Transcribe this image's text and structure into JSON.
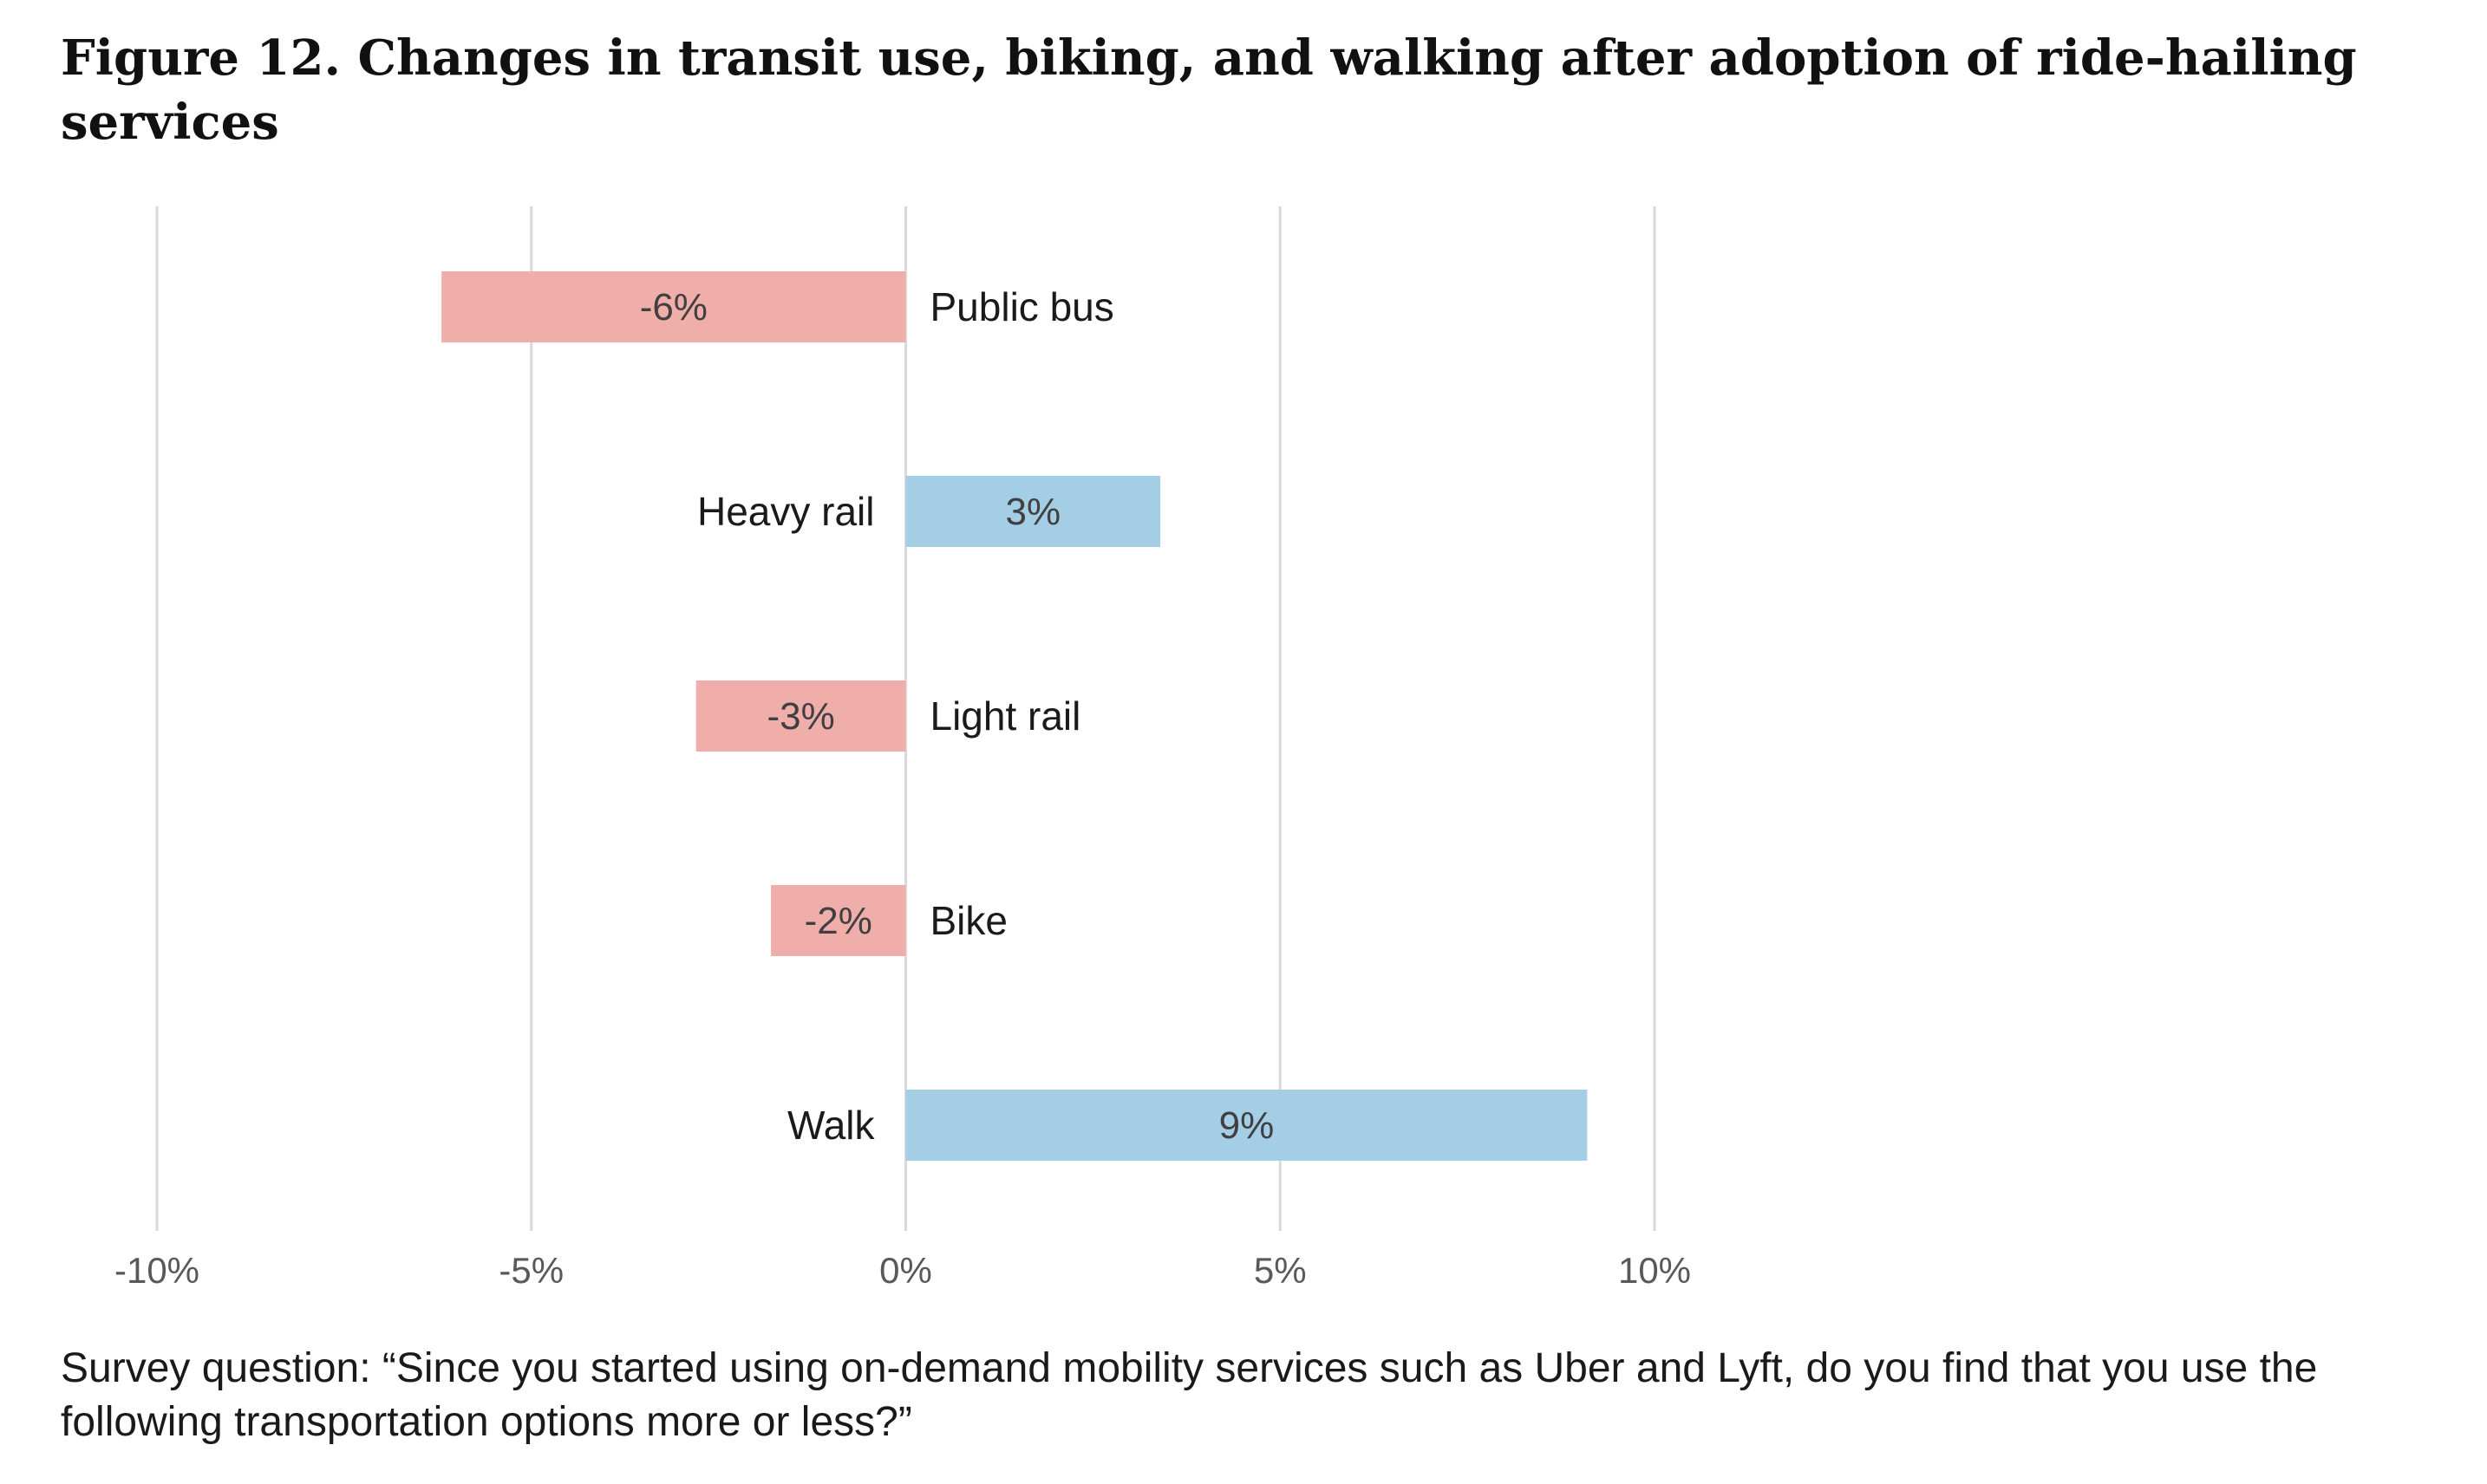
{
  "title": "Figure 12. Changes in transit use, biking, and walking after adoption of ride-hailing services",
  "caption": "Survey question: “Since you started using on-demand mobility services such as Uber and Lyft, do you find that you use the following transportation options more or less?”",
  "colors": {
    "negative": "#f0aeab",
    "positive": "#a4cde6",
    "grid": "#d9d9d9",
    "tick_text": "#595959",
    "label_text": "#1a1a1a",
    "value_text": "#404040"
  },
  "chart_data": {
    "type": "bar",
    "orientation": "horizontal",
    "categories": [
      "Public bus",
      "Heavy rail",
      "Light rail",
      "Bike",
      "Walk"
    ],
    "values": [
      -6.2,
      3.4,
      -2.8,
      -1.8,
      9.1
    ],
    "value_labels": [
      "-6%",
      "3%",
      "-3%",
      "-2%",
      "9%"
    ],
    "xlim": [
      -10,
      10
    ],
    "xticks": [
      -10,
      -5,
      0,
      5,
      10
    ],
    "xtick_labels": [
      "-10%",
      "-5%",
      "0%",
      "5%",
      "10%"
    ],
    "xlabel": "",
    "ylabel": "",
    "grid": true,
    "legend": "none"
  }
}
